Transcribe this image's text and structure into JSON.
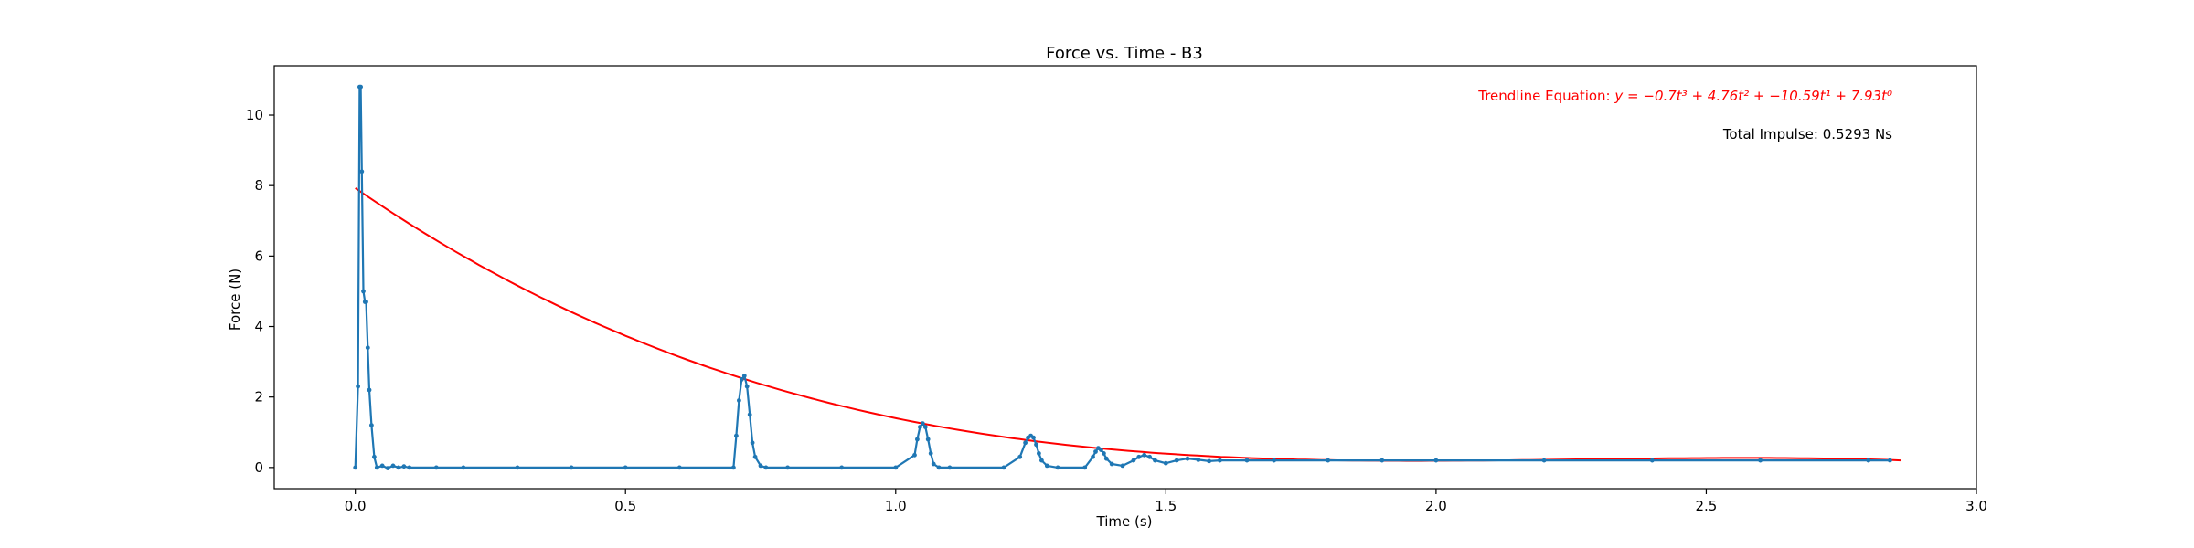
{
  "chart_data": {
    "type": "line",
    "title": "Force vs. Time - B3",
    "xlabel": "Time (s)",
    "ylabel": "Force (N)",
    "xlim": [
      -0.15,
      3.0
    ],
    "ylim": [
      -0.6,
      11.4
    ],
    "grid": false,
    "xticks": [
      0.0,
      0.5,
      1.0,
      1.5,
      2.0,
      2.5,
      3.0
    ],
    "xtick_labels": [
      "0.0",
      "0.5",
      "1.0",
      "1.5",
      "2.0",
      "2.5",
      "3.0"
    ],
    "yticks": [
      0,
      2,
      4,
      6,
      8,
      10
    ],
    "ytick_labels": [
      "0",
      "2",
      "4",
      "6",
      "8",
      "10"
    ],
    "annotations": {
      "trendline_prefix": "Trendline Equation: ",
      "trendline_equation": "y = −0.7t³ + 4.76t² + −10.59t¹ + 7.93t⁰",
      "total_impulse": "Total Impulse: 0.5293 Ns"
    },
    "colors": {
      "data": "#1f77b4",
      "trendline": "#ff0000"
    },
    "series": [
      {
        "kind": "measured",
        "x": [
          0.0,
          0.005,
          0.008,
          0.01,
          0.012,
          0.015,
          0.018,
          0.02,
          0.023,
          0.026,
          0.03,
          0.035,
          0.04,
          0.05,
          0.06,
          0.07,
          0.08,
          0.09,
          0.1,
          0.15,
          0.2,
          0.3,
          0.4,
          0.5,
          0.6,
          0.7,
          0.705,
          0.71,
          0.715,
          0.72,
          0.725,
          0.73,
          0.735,
          0.74,
          0.75,
          0.76,
          0.8,
          0.9,
          1.0,
          1.035,
          1.04,
          1.045,
          1.05,
          1.055,
          1.06,
          1.065,
          1.07,
          1.08,
          1.1,
          1.2,
          1.23,
          1.24,
          1.245,
          1.25,
          1.255,
          1.26,
          1.265,
          1.27,
          1.28,
          1.3,
          1.35,
          1.365,
          1.37,
          1.375,
          1.38,
          1.385,
          1.39,
          1.4,
          1.42,
          1.44,
          1.45,
          1.46,
          1.47,
          1.48,
          1.5,
          1.52,
          1.54,
          1.56,
          1.58,
          1.6,
          1.65,
          1.7,
          1.8,
          1.9,
          2.0,
          2.2,
          2.4,
          2.6,
          2.8,
          2.84
        ],
        "y": [
          0.0,
          2.3,
          10.8,
          10.8,
          8.4,
          5.0,
          4.7,
          4.7,
          3.4,
          2.2,
          1.2,
          0.3,
          0.0,
          0.05,
          -0.02,
          0.05,
          0.0,
          0.03,
          0.0,
          0.0,
          0.0,
          0.0,
          0.0,
          0.0,
          0.0,
          0.0,
          0.9,
          1.9,
          2.5,
          2.6,
          2.3,
          1.5,
          0.7,
          0.3,
          0.05,
          0.0,
          0.0,
          0.0,
          0.0,
          0.35,
          0.8,
          1.15,
          1.25,
          1.15,
          0.8,
          0.4,
          0.1,
          0.0,
          0.0,
          0.0,
          0.3,
          0.7,
          0.85,
          0.9,
          0.85,
          0.65,
          0.4,
          0.2,
          0.05,
          0.0,
          0.0,
          0.3,
          0.45,
          0.55,
          0.5,
          0.4,
          0.25,
          0.1,
          0.05,
          0.2,
          0.3,
          0.35,
          0.3,
          0.2,
          0.12,
          0.2,
          0.25,
          0.22,
          0.18,
          0.2,
          0.2,
          0.2,
          0.2,
          0.2,
          0.2,
          0.2,
          0.2,
          0.2,
          0.2,
          0.2
        ]
      },
      {
        "kind": "trendline",
        "coefficients": [
          -0.7,
          4.76,
          -10.59,
          7.93
        ],
        "x_range": [
          0.0,
          2.86
        ]
      }
    ]
  }
}
